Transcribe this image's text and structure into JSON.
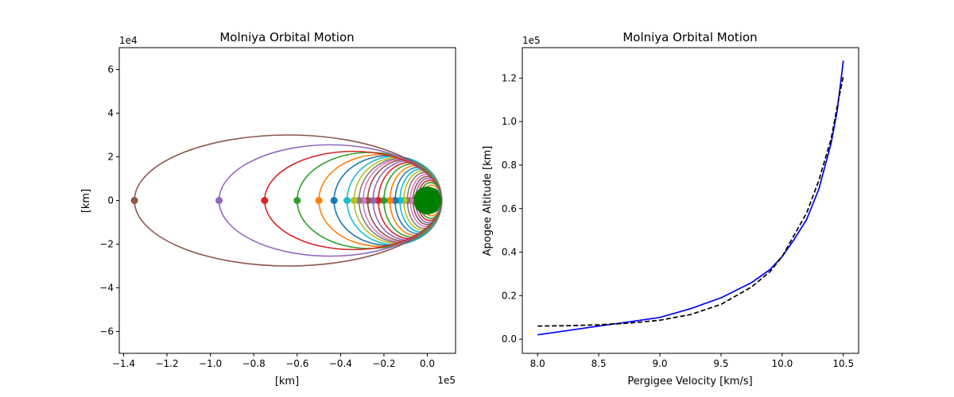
{
  "chart_data": [
    {
      "type": "line",
      "title": "Molniya Orbital Motion",
      "xlabel": "[km]",
      "ylabel": "[km]",
      "x_offset_text": "1e5",
      "y_offset_text": "1e4",
      "xlim": [
        -1.42,
        0.13
      ],
      "ylim": [
        -7.0,
        7.0
      ],
      "xticks": [
        -1.4,
        -1.2,
        -1.0,
        -0.8,
        -0.6,
        -0.4,
        -0.2,
        0.0
      ],
      "xtick_labels": [
        "−1.4",
        "−1.2",
        "−1.0",
        "−0.8",
        "−0.6",
        "−0.4",
        "−0.2",
        "0.0"
      ],
      "yticks": [
        -6,
        -4,
        -2,
        0,
        2,
        4,
        6
      ],
      "ytick_labels": [
        "−6",
        "−4",
        "−2",
        "0",
        "2",
        "4",
        "6"
      ],
      "grid": false,
      "earth": {
        "radius_x1e5": 0.06378,
        "color": "#008000"
      },
      "perigee_x1e5": 0.06578,
      "orbits": [
        {
          "apogee_x1e5": -0.02,
          "semi_minor_x1e4": 0.55,
          "color": "#1f77b4"
        },
        {
          "apogee_x1e5": -0.028,
          "semi_minor_x1e4": 0.7,
          "color": "#ff7f0e"
        },
        {
          "apogee_x1e5": -0.036,
          "semi_minor_x1e4": 0.82,
          "color": "#2ca02c"
        },
        {
          "apogee_x1e5": -0.045,
          "semi_minor_x1e4": 0.92,
          "color": "#d62728"
        },
        {
          "apogee_x1e5": -0.055,
          "semi_minor_x1e4": 1.02,
          "color": "#9467bd"
        },
        {
          "apogee_x1e5": -0.066,
          "semi_minor_x1e4": 1.1,
          "color": "#8c564b"
        },
        {
          "apogee_x1e5": -0.078,
          "semi_minor_x1e4": 1.19,
          "color": "#e377c2"
        },
        {
          "apogee_x1e5": -0.092,
          "semi_minor_x1e4": 1.28,
          "color": "#7f7f7f"
        },
        {
          "apogee_x1e5": -0.108,
          "semi_minor_x1e4": 1.36,
          "color": "#bcbd22"
        },
        {
          "apogee_x1e5": -0.126,
          "semi_minor_x1e4": 1.44,
          "color": "#17becf"
        },
        {
          "apogee_x1e5": -0.148,
          "semi_minor_x1e4": 1.52,
          "color": "#1f77b4"
        },
        {
          "apogee_x1e5": -0.172,
          "semi_minor_x1e4": 1.6,
          "color": "#ff7f0e"
        },
        {
          "apogee_x1e5": -0.2,
          "semi_minor_x1e4": 1.68,
          "color": "#2ca02c"
        },
        {
          "apogee_x1e5": -0.226,
          "semi_minor_x1e4": 1.75,
          "color": "#d62728"
        },
        {
          "apogee_x1e5": -0.25,
          "semi_minor_x1e4": 1.81,
          "color": "#9467bd"
        },
        {
          "apogee_x1e5": -0.275,
          "semi_minor_x1e4": 1.86,
          "color": "#8c564b"
        },
        {
          "apogee_x1e5": -0.296,
          "semi_minor_x1e4": 1.9,
          "color": "#e377c2"
        },
        {
          "apogee_x1e5": -0.315,
          "semi_minor_x1e4": 1.93,
          "color": "#7f7f7f"
        },
        {
          "apogee_x1e5": -0.338,
          "semi_minor_x1e4": 1.97,
          "color": "#bcbd22"
        },
        {
          "apogee_x1e5": -0.37,
          "semi_minor_x1e4": 2.02,
          "color": "#17becf"
        },
        {
          "apogee_x1e5": -0.43,
          "semi_minor_x1e4": 2.05,
          "color": "#1f77b4"
        },
        {
          "apogee_x1e5": -0.5,
          "semi_minor_x1e4": 2.1,
          "color": "#ff7f0e"
        },
        {
          "apogee_x1e5": -0.6,
          "semi_minor_x1e4": 2.2,
          "color": "#2ca02c"
        },
        {
          "apogee_x1e5": -0.75,
          "semi_minor_x1e4": 2.25,
          "color": "#d62728"
        },
        {
          "apogee_x1e5": -0.96,
          "semi_minor_x1e4": 2.55,
          "color": "#9467bd"
        },
        {
          "apogee_x1e5": -1.35,
          "semi_minor_x1e4": 3.0,
          "color": "#8c564b"
        }
      ]
    },
    {
      "type": "line",
      "title": "Molniya Orbital Motion",
      "xlabel": "Pergigee Velocity [km/s]",
      "ylabel": "Apogee Altitude [km]",
      "y_offset_text": "1e5",
      "xlim": [
        7.875,
        10.625
      ],
      "ylim": [
        -0.065,
        1.34
      ],
      "xticks": [
        8.0,
        8.5,
        9.0,
        9.5,
        10.0,
        10.5
      ],
      "xtick_labels": [
        "8.0",
        "8.5",
        "9.0",
        "9.5",
        "10.0",
        "10.5"
      ],
      "yticks": [
        0.0,
        0.2,
        0.4,
        0.6,
        0.8,
        1.0,
        1.2
      ],
      "ytick_labels": [
        "0.0",
        "0.2",
        "0.4",
        "0.6",
        "0.8",
        "1.0",
        "1.2"
      ],
      "grid": false,
      "series": [
        {
          "style": "solid",
          "color": "#0000ff",
          "x": [
            8.0,
            8.25,
            8.5,
            8.75,
            9.0,
            9.25,
            9.5,
            9.75,
            9.9,
            10.0,
            10.1,
            10.2,
            10.3,
            10.4,
            10.45,
            10.5
          ],
          "y": [
            0.02,
            0.04,
            0.06,
            0.08,
            0.1,
            0.14,
            0.19,
            0.26,
            0.32,
            0.38,
            0.46,
            0.55,
            0.69,
            0.9,
            1.05,
            1.28
          ]
        },
        {
          "style": "dashed",
          "color": "#000000",
          "x": [
            8.0,
            8.25,
            8.5,
            8.75,
            9.0,
            9.25,
            9.5,
            9.75,
            9.9,
            10.0,
            10.1,
            10.2,
            10.3,
            10.4,
            10.45,
            10.5
          ],
          "y": [
            0.06,
            0.062,
            0.066,
            0.074,
            0.087,
            0.113,
            0.16,
            0.24,
            0.31,
            0.38,
            0.48,
            0.58,
            0.73,
            0.92,
            1.07,
            1.21
          ]
        }
      ]
    }
  ]
}
